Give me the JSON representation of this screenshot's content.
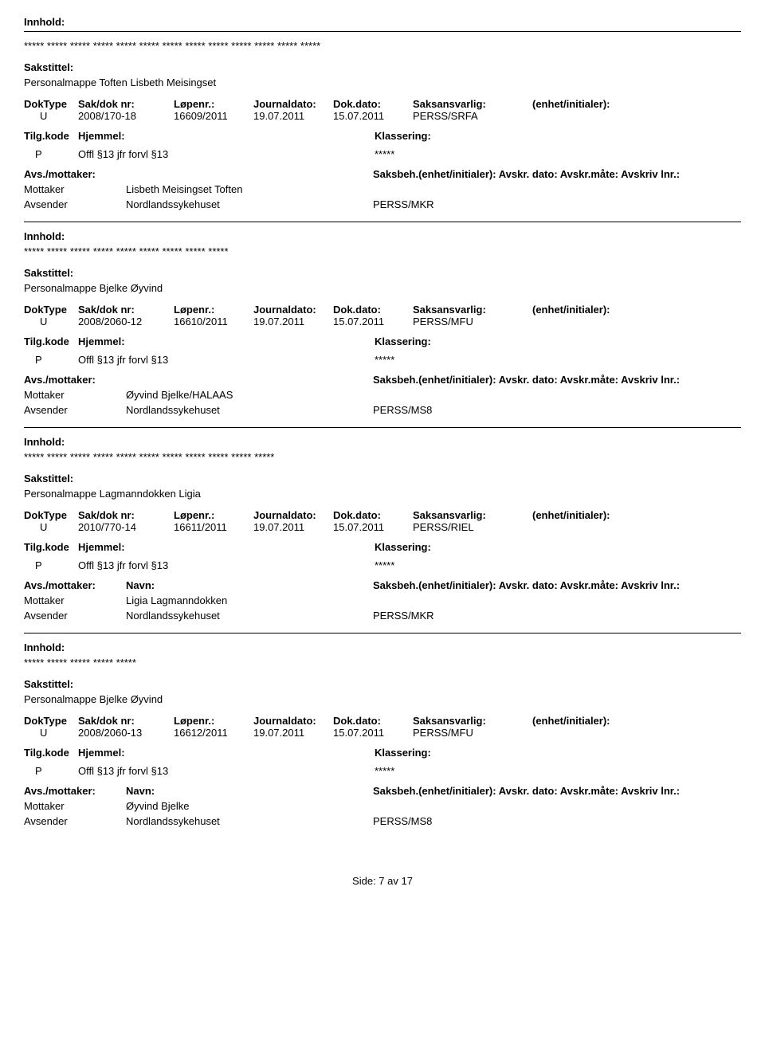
{
  "labels": {
    "innhold": "Innhold:",
    "sakstittel": "Sakstittel:",
    "doktype": "DokType",
    "sakdok": "Sak/dok nr:",
    "lopenr": "Løpenr.:",
    "journaldato": "Journaldato:",
    "dokdato": "Dok.dato:",
    "saksansvarlig": "Saksansvarlig:",
    "enhet": "(enhet/initialer):",
    "tilgkode": "Tilg.kode",
    "hjemmel": "Hjemmel:",
    "klassering": "Klassering:",
    "avsmottaker": "Avs./mottaker:",
    "navn": "Navn:",
    "saksbeh": "Saksbeh.(enhet/initialer): Avskr. dato:  Avskr.måte:  Avskriv lnr.:",
    "mottaker": "Mottaker",
    "avsender": "Avsender"
  },
  "records": [
    {
      "innhold_stars": "***** *****  ***** ***** ***** ***** ***** ***** ***** ***** ***** ***** *****",
      "sakstittel": "Personalmappe Toften Lisbeth Meisingset",
      "doktype": "U",
      "sakdok": "2008/170-18",
      "lopenr": "16609/2011",
      "journaldato": "19.07.2011",
      "dokdato": "15.07.2011",
      "saksansvarlig": "PERSS/SRFA",
      "tilgkode": "P",
      "hjemmel": "Offl §13 jfr forvl §13",
      "klassering": "*****",
      "show_navn_header": false,
      "mottaker": "Lisbeth Meisingset Toften",
      "avsender": "Nordlandssykehuset",
      "unit": "PERSS/MKR"
    },
    {
      "innhold_stars": "***** ***** ***** ***** ***** ***** ***** ***** *****",
      "sakstittel": "Personalmappe Bjelke Øyvind",
      "doktype": "U",
      "sakdok": "2008/2060-12",
      "lopenr": "16610/2011",
      "journaldato": "19.07.2011",
      "dokdato": "15.07.2011",
      "saksansvarlig": "PERSS/MFU",
      "tilgkode": "P",
      "hjemmel": "Offl §13 jfr forvl §13",
      "klassering": "*****",
      "show_navn_header": false,
      "mottaker": "Øyvind Bjelke/HALAAS",
      "avsender": "Nordlandssykehuset",
      "unit": "PERSS/MS8"
    },
    {
      "innhold_stars": "***** ***** ***** ***** ***** ***** ***** ***** ***** ***** *****",
      "sakstittel": "Personalmappe Lagmanndokken Ligia",
      "doktype": "U",
      "sakdok": "2010/770-14",
      "lopenr": "16611/2011",
      "journaldato": "19.07.2011",
      "dokdato": "15.07.2011",
      "saksansvarlig": "PERSS/RIEL",
      "tilgkode": "P",
      "hjemmel": "Offl §13 jfr forvl §13",
      "klassering": "*****",
      "show_navn_header": true,
      "mottaker": "Ligia Lagmanndokken",
      "avsender": "Nordlandssykehuset",
      "unit": "PERSS/MKR"
    },
    {
      "innhold_stars": "***** ***** ***** ***** *****",
      "sakstittel": "Personalmappe Bjelke Øyvind",
      "doktype": "U",
      "sakdok": "2008/2060-13",
      "lopenr": "16612/2011",
      "journaldato": "19.07.2011",
      "dokdato": "15.07.2011",
      "saksansvarlig": "PERSS/MFU",
      "tilgkode": "P",
      "hjemmel": "Offl §13 jfr forvl §13",
      "klassering": "*****",
      "show_navn_header": true,
      "mottaker": "Øyvind Bjelke",
      "avsender": "Nordlandssykehuset",
      "unit": "PERSS/MS8"
    }
  ],
  "footer": "Side: 7 av 17"
}
